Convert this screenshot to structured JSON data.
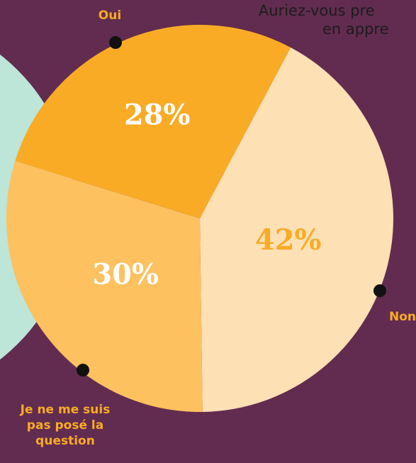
{
  "chart_data": {
    "type": "pie",
    "title_lines": [
      "Auriez-vous pre",
      "en appre"
    ],
    "categories": [
      "Oui",
      "Non",
      "Je ne me suis pas posé la question"
    ],
    "values": [
      28,
      42,
      30
    ],
    "value_labels": [
      "28%",
      "42%",
      "30%"
    ],
    "colors": [
      "#f9ab25",
      "#fde0b4",
      "#fdc160"
    ],
    "label_colors": [
      "#ffffff",
      "#f9ab25",
      "#ffffff"
    ]
  }
}
